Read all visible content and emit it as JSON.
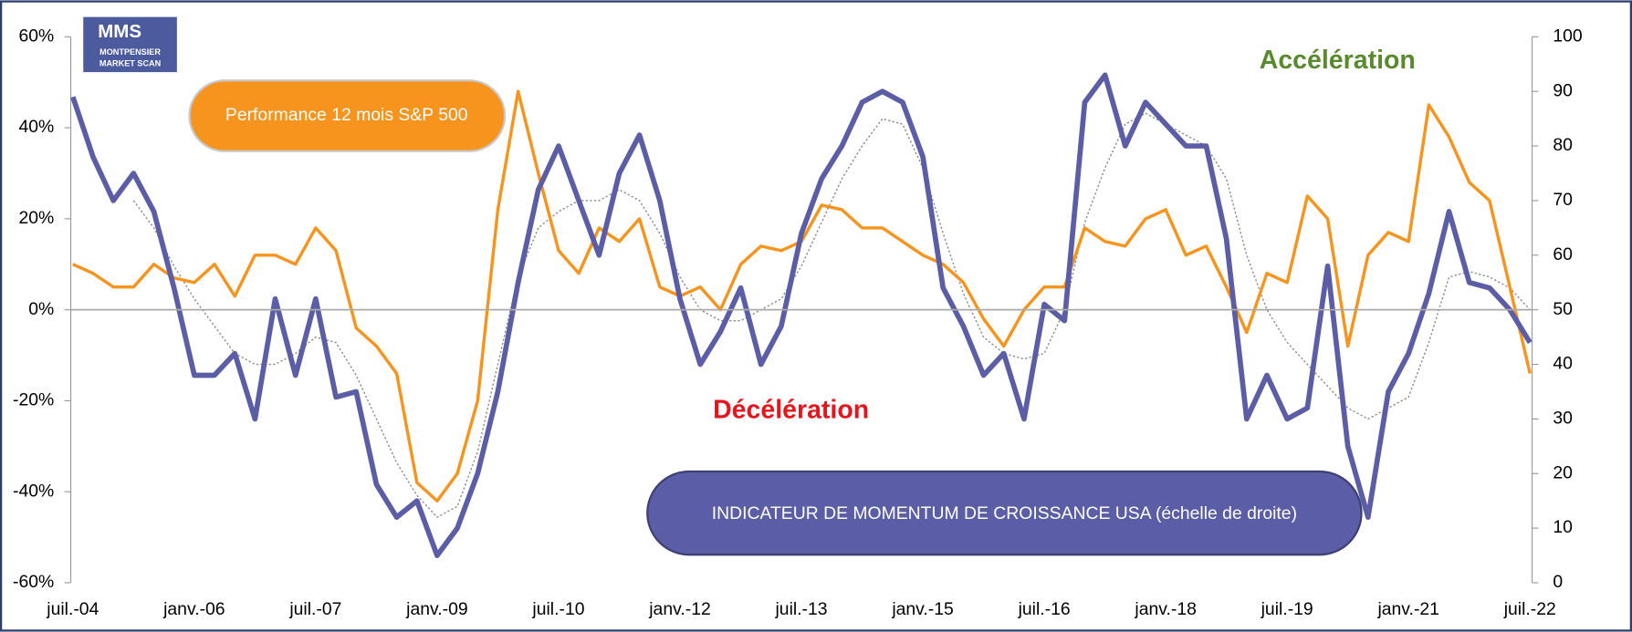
{
  "chart_data": {
    "type": "line",
    "logo": {
      "title": "MMS",
      "lines": [
        "MONTPENSIER",
        "MARKET SCAN"
      ]
    },
    "annotations": [
      {
        "text": "Accélération",
        "color": "#5a8a2e"
      },
      {
        "text": "Décélération",
        "color": "#e8141b"
      }
    ],
    "categories": [
      "juil.-04",
      null,
      null,
      null,
      null,
      null,
      "janv.-06",
      null,
      null,
      null,
      null,
      null,
      "juil.-07",
      null,
      null,
      null,
      null,
      null,
      "janv.-09",
      null,
      null,
      null,
      null,
      null,
      "juil.-10",
      null,
      null,
      null,
      null,
      null,
      "janv.-12",
      null,
      null,
      null,
      null,
      null,
      "juil.-13",
      null,
      null,
      null,
      null,
      null,
      "janv.-15",
      null,
      null,
      null,
      null,
      null,
      "juil.-16",
      null,
      null,
      null,
      null,
      null,
      "janv.-18",
      null,
      null,
      null,
      null,
      null,
      "juil.-19",
      null,
      null,
      null,
      null,
      null,
      "janv.-21",
      null,
      null,
      null,
      null,
      null,
      "juil.-22"
    ],
    "series": [
      {
        "name": "Performance 12 mois S&P 500",
        "color": "#f7941d",
        "width": 3,
        "values": [
          10,
          8,
          5,
          5,
          10,
          7,
          6,
          10,
          3,
          12,
          12,
          10,
          18,
          13,
          -4,
          -8,
          -14,
          -38,
          -42,
          -36,
          -20,
          22,
          48,
          30,
          13,
          8,
          18,
          15,
          20,
          5,
          3,
          5,
          0,
          10,
          14,
          13,
          15,
          23,
          22,
          18,
          18,
          15,
          12,
          10,
          6,
          -2,
          -8,
          0,
          5,
          5,
          18,
          15,
          14,
          20,
          22,
          12,
          14,
          5,
          -5,
          8,
          6,
          25,
          20,
          -8,
          12,
          17,
          15,
          45,
          38,
          28,
          24,
          5,
          -14
        ]
      },
      {
        "name": "INDICATEUR DE MOMENTUM DE CROISSANCE USA (échelle de droite)",
        "color": "#5b5ea6",
        "width": 5,
        "axis": "y2",
        "values": [
          89,
          78,
          70,
          75,
          68,
          54,
          38,
          38,
          42,
          30,
          52,
          38,
          52,
          34,
          35,
          18,
          12,
          15,
          5,
          10,
          20,
          35,
          55,
          72,
          80,
          70,
          60,
          75,
          82,
          70,
          52,
          40,
          46,
          54,
          40,
          47,
          64,
          74,
          80,
          88,
          90,
          88,
          78,
          54,
          47,
          38,
          42,
          30,
          51,
          48,
          88,
          93,
          80,
          88,
          84,
          80,
          80,
          63,
          30,
          38,
          30,
          32,
          58,
          25,
          12,
          35,
          42,
          53,
          68,
          55,
          54,
          50,
          44
        ]
      },
      {
        "color": "#8a8a8a",
        "width": 1.2,
        "axis": "y2",
        "style": "dotted",
        "values": [
          null,
          null,
          null,
          70,
          65,
          58,
          52,
          47,
          42,
          40,
          40,
          42,
          45,
          44,
          38,
          30,
          22,
          16,
          12,
          14,
          24,
          40,
          56,
          65,
          68,
          70,
          70,
          72,
          70,
          64,
          56,
          50,
          48,
          48,
          50,
          52,
          58,
          66,
          74,
          80,
          85,
          84,
          76,
          64,
          53,
          45,
          42,
          41,
          42,
          50,
          66,
          76,
          84,
          86,
          84,
          82,
          80,
          74,
          60,
          50,
          44,
          40,
          36,
          32,
          30,
          32,
          34,
          44,
          56,
          57,
          56,
          54,
          50
        ]
      }
    ],
    "ylim": [
      -60,
      60
    ],
    "yticks": [
      {
        "value": -60,
        "label": "-60%"
      },
      {
        "value": -40,
        "label": "-40%"
      },
      {
        "value": -20,
        "label": "-20%"
      },
      {
        "value": 0,
        "label": "0%"
      },
      {
        "value": 20,
        "label": "20%"
      },
      {
        "value": 40,
        "label": "40%"
      },
      {
        "value": 60,
        "label": "60%"
      }
    ],
    "y2lim": [
      0,
      100
    ],
    "y2ticks": [
      0,
      10,
      20,
      30,
      40,
      50,
      60,
      70,
      80,
      90,
      100
    ]
  }
}
